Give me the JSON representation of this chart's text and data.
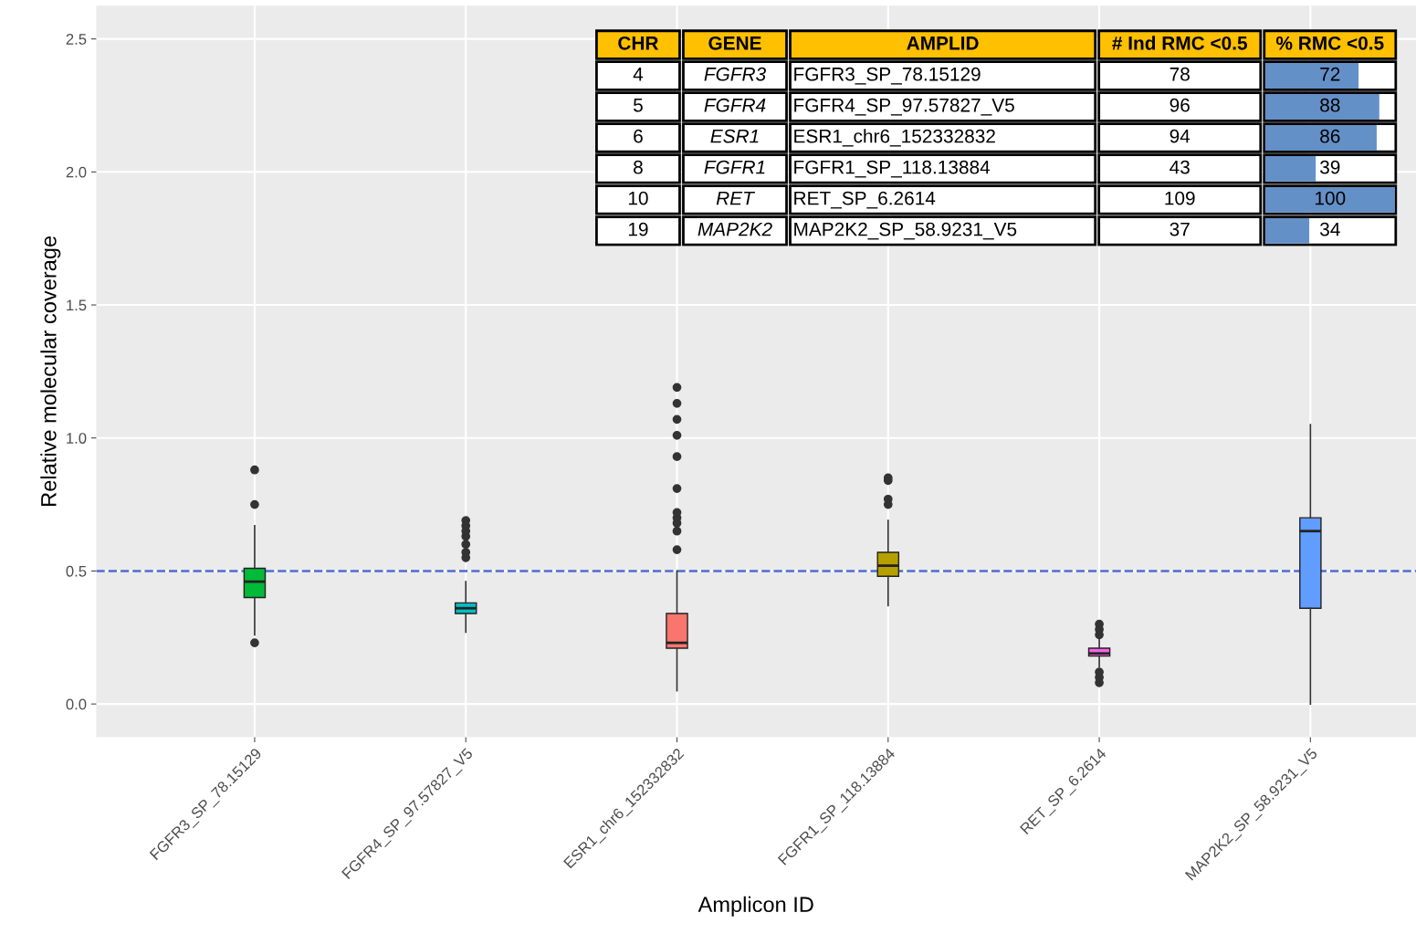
{
  "chart_data": [
    {
      "type": "box",
      "xlabel": "Amplicon ID",
      "ylabel": "Relative molecular coverage",
      "categories": [
        "FGFR3_SP_78.15129",
        "FGFR4_SP_97.57827_V5",
        "ESR1_chr6_152332832",
        "FGFR1_SP_118.13884",
        "RET_SP_6.2614",
        "MAP2K2_SP_58.9231_V5"
      ],
      "colors": [
        "#00ba38",
        "#00bfc4",
        "#f8766d",
        "#b79f00",
        "#f564e3",
        "#619cff"
      ],
      "boxes": [
        {
          "low": 0.26,
          "q1": 0.4,
          "median": 0.46,
          "q3": 0.51,
          "high": 0.67,
          "outliers": [
            0.23,
            0.75,
            0.88
          ]
        },
        {
          "low": 0.27,
          "q1": 0.34,
          "median": 0.36,
          "q3": 0.38,
          "high": 0.46,
          "outliers": [
            0.55,
            0.57,
            0.6,
            0.63,
            0.65,
            0.67,
            0.69
          ]
        },
        {
          "low": 0.05,
          "q1": 0.21,
          "median": 0.23,
          "q3": 0.34,
          "high": 0.5,
          "outliers": [
            0.58,
            0.65,
            0.68,
            0.7,
            0.72,
            0.81,
            0.93,
            1.01,
            1.07,
            1.13,
            1.19
          ]
        },
        {
          "low": 0.37,
          "q1": 0.48,
          "median": 0.52,
          "q3": 0.57,
          "high": 0.69,
          "outliers": [
            0.75,
            0.77,
            0.84,
            0.85
          ]
        },
        {
          "low": 0.14,
          "q1": 0.18,
          "median": 0.19,
          "q3": 0.21,
          "high": 0.25,
          "outliers": [
            0.08,
            0.1,
            0.12,
            0.26,
            0.28,
            0.3
          ]
        },
        {
          "low": 0.0,
          "q1": 0.36,
          "median": 0.65,
          "q3": 0.7,
          "high": 1.05
        }
      ],
      "ylim": [
        -0.125,
        2.625
      ],
      "yticks": [
        {
          "value": 0,
          "label": "0.0"
        },
        {
          "value": 0.5,
          "label": "0.5"
        },
        {
          "value": 1,
          "label": "1.0"
        },
        {
          "value": 1.5,
          "label": "1.5"
        },
        {
          "value": 2,
          "label": "2.0"
        },
        {
          "value": 2.5,
          "label": "2.5"
        }
      ],
      "ref_lines": [
        {
          "axis": "y",
          "value": 0.5,
          "label": null,
          "color": "#4a6cd4",
          "line_style": "dashed"
        }
      ],
      "grid": true
    },
    {
      "type": "bar",
      "orientation": "horizontal",
      "xlim": [
        0,
        100
      ],
      "categories": [
        "FGFR3_SP_78.15129",
        "FGFR4_SP_97.57827_V5",
        "ESR1_chr6_152332832",
        "FGFR1_SP_118.13884",
        "RET_SP_6.2614",
        "MAP2K2_SP_58.9231_V5"
      ],
      "values": [
        72,
        88,
        86,
        39,
        100,
        34
      ],
      "value_labels": [
        "72",
        "88",
        "86",
        "39",
        "100",
        "34"
      ],
      "color": "#6490c8",
      "annotations": [
        "CHR",
        "GENE",
        "AMPLID",
        "# Ind RMC <0.5",
        "% RMC <0.5",
        "4",
        "FGFR3",
        "78",
        "5",
        "FGFR4",
        "96",
        "6",
        "ESR1",
        "94",
        "8",
        "FGFR1",
        "43",
        "10",
        "RET",
        "109",
        "19",
        "MAP2K2",
        "37"
      ]
    }
  ]
}
